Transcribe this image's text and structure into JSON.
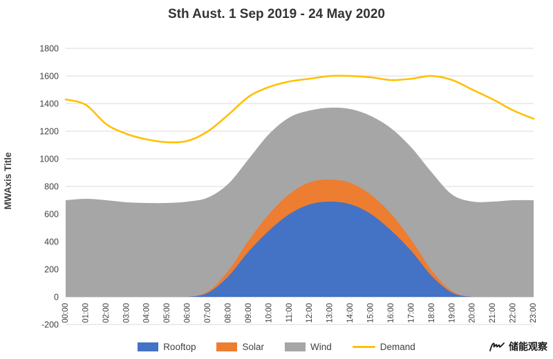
{
  "watermark": {
    "text": "储能观察"
  },
  "chart_data": {
    "type": "area",
    "stacked": true,
    "title": "Sth Aust. 1 Sep 2019 - 24 May 2020",
    "xlabel": "",
    "ylabel": "MWAxis Title",
    "ylim": [
      -200,
      1800
    ],
    "ytick_step": 200,
    "grid": true,
    "legend_position": "bottom",
    "colors": {
      "grid": "#d9d9d9",
      "zero_axis": "#bfbfbf",
      "tick_text": "#404040"
    },
    "categories": [
      "00:00",
      "01:00",
      "02:00",
      "03:00",
      "04:00",
      "05:00",
      "06:00",
      "07:00",
      "08:00",
      "09:00",
      "10:00",
      "11:00",
      "12:00",
      "13:00",
      "14:00",
      "15:00",
      "16:00",
      "17:00",
      "18:00",
      "19:00",
      "20:00",
      "21:00",
      "22:00",
      "23:00"
    ],
    "series": [
      {
        "name": "Rooftop",
        "type": "area",
        "color": "#4472c4",
        "values": [
          0,
          0,
          0,
          0,
          0,
          0,
          0,
          30,
          150,
          330,
          480,
          600,
          670,
          690,
          670,
          600,
          480,
          330,
          150,
          30,
          0,
          0,
          0,
          0
        ]
      },
      {
        "name": "Solar",
        "type": "area",
        "color": "#ed7d31",
        "values": [
          0,
          0,
          0,
          0,
          0,
          0,
          0,
          10,
          40,
          80,
          120,
          145,
          160,
          160,
          155,
          140,
          120,
          80,
          40,
          10,
          0,
          0,
          0,
          0
        ]
      },
      {
        "name": "Wind",
        "type": "area",
        "color": "#a6a6a6",
        "values": [
          700,
          710,
          700,
          685,
          680,
          680,
          690,
          680,
          630,
          590,
          580,
          555,
          520,
          520,
          535,
          570,
          620,
          670,
          710,
          700,
          690,
          690,
          700,
          700
        ]
      },
      {
        "name": "Demand",
        "type": "line",
        "color": "#ffc000",
        "values": [
          1430,
          1390,
          1250,
          1180,
          1140,
          1120,
          1130,
          1200,
          1320,
          1450,
          1520,
          1560,
          1580,
          1600,
          1600,
          1590,
          1570,
          1580,
          1600,
          1570,
          1500,
          1430,
          1350,
          1290
        ]
      }
    ]
  }
}
